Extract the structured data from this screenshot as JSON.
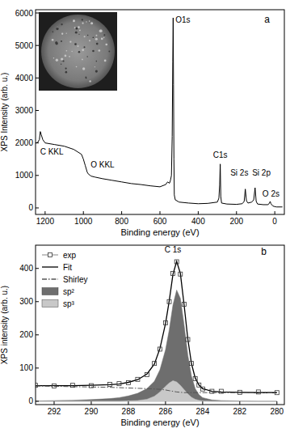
{
  "chart_data": [
    {
      "type": "line",
      "x_label": "Binding energy (eV)",
      "y_label": "XPS Intensity (arb. u.)",
      "x": [
        1250,
        1240,
        1230,
        1225,
        1220,
        1212,
        1200,
        1150,
        1100,
        1050,
        1010,
        1000,
        990,
        980,
        975,
        960,
        940,
        900,
        850,
        800,
        750,
        700,
        650,
        600,
        570,
        560,
        550,
        545,
        540,
        536,
        533,
        531,
        529,
        527,
        525,
        520,
        500,
        450,
        400,
        350,
        300,
        292,
        288,
        285,
        282,
        278,
        250,
        200,
        170,
        160,
        154,
        148,
        140,
        120,
        110,
        103,
        97,
        90,
        60,
        35,
        28,
        24,
        20,
        10,
        0,
        -10,
        -40
      ],
      "values": [
        2000,
        2010,
        2100,
        2350,
        2250,
        2100,
        2000,
        1950,
        1900,
        1800,
        1650,
        1500,
        1300,
        1100,
        1050,
        980,
        950,
        900,
        850,
        800,
        750,
        720,
        680,
        650,
        720,
        800,
        760,
        850,
        1000,
        2200,
        4500,
        5850,
        3800,
        1500,
        400,
        250,
        180,
        150,
        130,
        140,
        180,
        300,
        700,
        1350,
        350,
        150,
        120,
        110,
        130,
        200,
        580,
        220,
        150,
        180,
        250,
        620,
        200,
        120,
        100,
        100,
        150,
        200,
        130,
        60,
        40,
        30,
        30
      ],
      "color": "#000000",
      "xlim": [
        1250,
        -50
      ],
      "xticks": [
        1200,
        1000,
        800,
        600,
        400,
        200,
        0
      ],
      "ylim": [
        -200,
        6100
      ],
      "yticks": [
        0,
        1000,
        2000,
        3000,
        4000,
        5000,
        6000
      ],
      "grid": false,
      "annotations": [
        {
          "text": "C KKL",
          "x": 1165,
          "y": 1650
        },
        {
          "text": "O KKL",
          "x": 900,
          "y": 1250
        },
        {
          "text": "O1s",
          "x": 480,
          "y": 5700
        },
        {
          "text": "C1s",
          "x": 285,
          "y": 1550
        },
        {
          "text": "Si 2s",
          "x": 185,
          "y": 1000
        },
        {
          "text": "Si 2p",
          "x": 70,
          "y": 1000
        },
        {
          "text": "O 2s",
          "x": 20,
          "y": 350
        },
        {
          "text": "a",
          "x": 40,
          "y": 5700
        }
      ]
    },
    {
      "type": "line",
      "x_label": "Binding energy (eV)",
      "y_label": "XPS intensity (arb. u.)",
      "x": [
        293,
        292,
        291,
        290,
        289,
        288.5,
        288,
        287.5,
        287,
        286.6,
        286.3,
        286,
        285.8,
        285.6,
        285.4,
        285.2,
        285,
        284.8,
        284.6,
        284.4,
        284.2,
        284,
        283.5,
        283,
        282,
        281,
        280
      ],
      "series": [
        {
          "name": "exp",
          "type": "scatter",
          "marker": "square",
          "color": "#333333",
          "values": [
            48,
            46,
            48,
            47,
            51,
            53,
            56,
            66,
            80,
            114,
            157,
            236,
            300,
            385,
            420,
            383,
            292,
            186,
            114,
            68,
            49,
            37,
            30,
            30,
            27,
            28,
            26
          ]
        },
        {
          "name": "Fit",
          "type": "line",
          "line_style": "solid",
          "color": "#000000",
          "values": [
            47,
            47,
            47,
            48,
            50,
            52,
            57,
            65,
            82,
            112,
            159,
            234,
            302,
            382,
            421,
            385,
            291,
            188,
            113,
            70,
            49,
            38,
            30,
            28,
            27,
            26,
            26
          ]
        },
        {
          "name": "Shirley",
          "type": "line",
          "line_style": "dashdot",
          "color": "#555555",
          "values": [
            46,
            45,
            44,
            43,
            42,
            41,
            40,
            39,
            38,
            37,
            36,
            34,
            32,
            30,
            28,
            27,
            26,
            26,
            26,
            26,
            26,
            26,
            26,
            26,
            26,
            26,
            26
          ]
        },
        {
          "name": "sp²",
          "type": "area",
          "color": "#6e6e6e",
          "values": [
            1,
            2,
            3,
            5,
            8,
            11,
            16,
            24,
            38,
            60,
            95,
            155,
            215,
            290,
            335,
            310,
            230,
            140,
            75,
            38,
            20,
            11,
            4,
            2,
            1,
            0,
            0
          ]
        },
        {
          "name": "sp³",
          "type": "area",
          "color": "#c8c8c8",
          "values": [
            0,
            0,
            0,
            0,
            0,
            0,
            1,
            2,
            6,
            15,
            28,
            45,
            55,
            62,
            58,
            48,
            35,
            22,
            12,
            6,
            3,
            1,
            0,
            0,
            0,
            0,
            0
          ]
        }
      ],
      "xlim": [
        293,
        279.6
      ],
      "xticks": [
        292,
        290,
        288,
        286,
        284,
        282,
        280
      ],
      "ylim": [
        -10,
        470
      ],
      "yticks": [
        0,
        100,
        200,
        300,
        400
      ],
      "grid": false,
      "legend": "upper left",
      "annotations": [
        {
          "text": "C 1s",
          "x": 285.6,
          "y": 447
        },
        {
          "text": "b",
          "x": 280.7,
          "y": 440
        }
      ]
    }
  ]
}
